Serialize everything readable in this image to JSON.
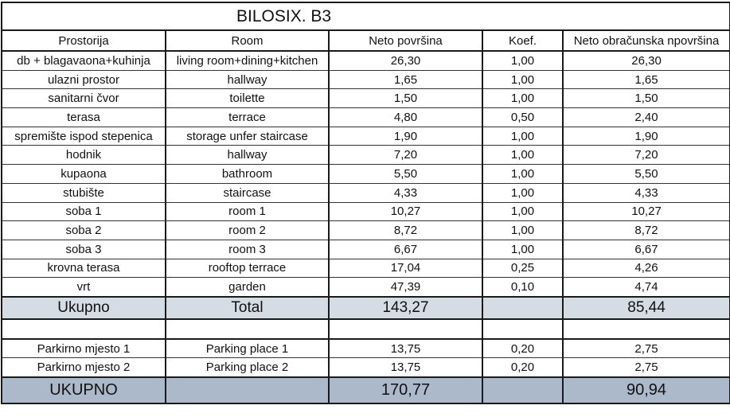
{
  "title": "BILOSIX. B3",
  "headers": [
    "Prostorija",
    "Room",
    "Neto površina",
    "Koef.",
    "Neto obračunska npovršina"
  ],
  "rows": [
    [
      "db + blagavaona+kuhinja",
      "living room+dining+kitchen",
      "26,30",
      "1,00",
      "26,30"
    ],
    [
      "ulazni prostor",
      "hallway",
      "1,65",
      "1,00",
      "1,65"
    ],
    [
      "sanitarni čvor",
      "toilette",
      "1,50",
      "1,00",
      "1,50"
    ],
    [
      "terasa",
      "terrace",
      "4,80",
      "0,50",
      "2,40"
    ],
    [
      "spremište ispod stepenica",
      "storage unfer staircase",
      "1,90",
      "1,00",
      "1,90"
    ],
    [
      "hodnik",
      "hallway",
      "7,20",
      "1,00",
      "7,20"
    ],
    [
      "kupaona",
      "bathroom",
      "5,50",
      "1,00",
      "5,50"
    ],
    [
      "stubište",
      "staircase",
      "4,33",
      "1,00",
      "4,33"
    ],
    [
      "soba 1",
      "room 1",
      "10,27",
      "1,00",
      "10,27"
    ],
    [
      "soba 2",
      "room 2",
      "8,72",
      "1,00",
      "8,72"
    ],
    [
      "soba 3",
      "room 3",
      "6,67",
      "1,00",
      "6,67"
    ],
    [
      "krovna terasa",
      "rooftop terrace",
      "17,04",
      "0,25",
      "4,26"
    ],
    [
      "vrt",
      "garden",
      "47,39",
      "0,10",
      "4,74"
    ]
  ],
  "total": [
    "Ukupno",
    "Total",
    "143,27",
    "",
    "85,44"
  ],
  "parking": [
    [
      "Parkirno mjesto 1",
      "Parking place 1",
      "13,75",
      "0,20",
      "2,75"
    ],
    [
      "Parkirno mjesto 2",
      "Parking place 2",
      "13,75",
      "0,20",
      "2,75"
    ]
  ],
  "grand_total": [
    "UKUPNO",
    "",
    "170,77",
    "",
    "90,94"
  ],
  "colors": {
    "total_bg": "#d6dce4",
    "grand_total_bg": "#acb9ca"
  }
}
